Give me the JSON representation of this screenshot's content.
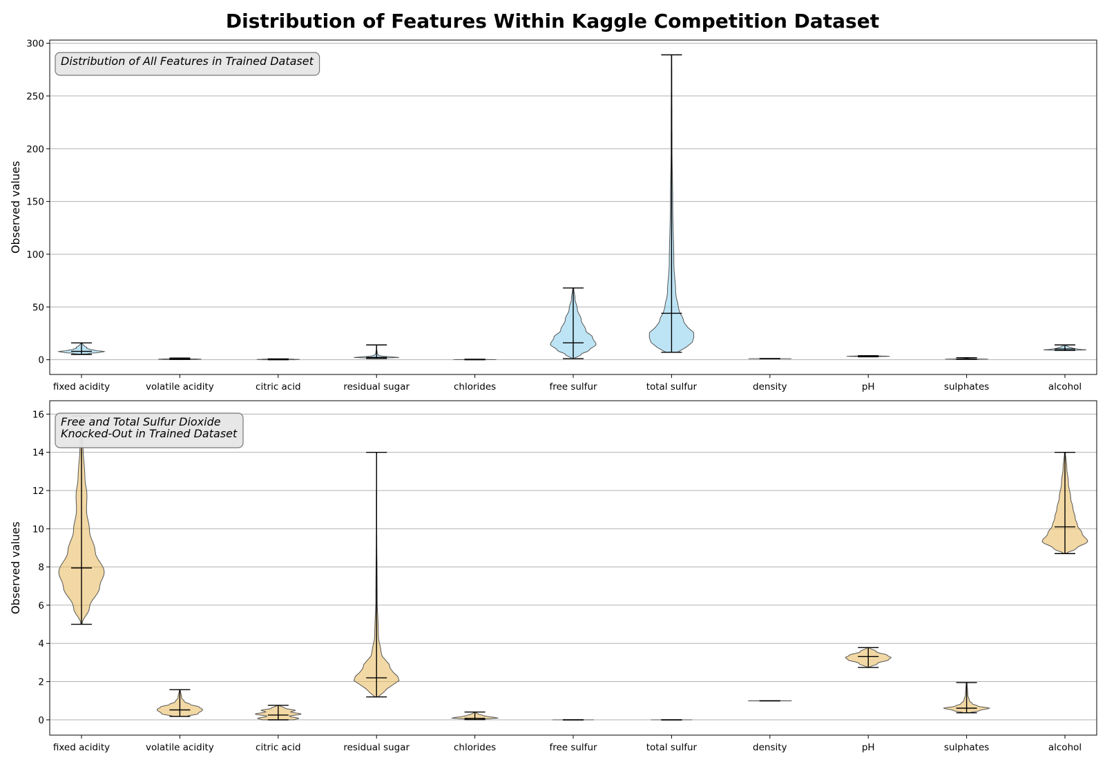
{
  "title": "Distribution of Features Within Kaggle Competition Dataset",
  "chart_data": [
    {
      "type": "violin",
      "annotation": [
        "Distribution of All Features in Trained Dataset"
      ],
      "ylabel": "Observed values",
      "xlabel": "",
      "ylim": [
        -14,
        303
      ],
      "yticks": [
        0,
        50,
        100,
        150,
        200,
        250,
        300
      ],
      "grid": "horizontal",
      "color": "#87ceeb",
      "categories": [
        "fixed acidity",
        "volatile acidity",
        "citric acid",
        "residual sugar",
        "chlorides",
        "free sulfur",
        "total sulfur",
        "density",
        "pH",
        "sulphates",
        "alcohol"
      ],
      "stats": [
        {
          "min": 5.0,
          "max": 15.9,
          "median": 7.9
        },
        {
          "min": 0.18,
          "max": 1.58,
          "median": 0.52
        },
        {
          "min": 0.0,
          "max": 0.76,
          "median": 0.25
        },
        {
          "min": 1.2,
          "max": 14.0,
          "median": 2.2
        },
        {
          "min": 0.012,
          "max": 0.41,
          "median": 0.08
        },
        {
          "min": 1,
          "max": 68,
          "median": 16
        },
        {
          "min": 7,
          "max": 289,
          "median": 44
        },
        {
          "min": 0.99,
          "max": 1.0,
          "median": 0.997
        },
        {
          "min": 2.74,
          "max": 3.78,
          "median": 3.31
        },
        {
          "min": 0.37,
          "max": 1.95,
          "median": 0.61
        },
        {
          "min": 8.7,
          "max": 14.0,
          "median": 10.1
        }
      ]
    },
    {
      "type": "violin",
      "annotation": [
        "Free and Total Sulfur Dioxide",
        "Knocked-Out in Trained Dataset"
      ],
      "ylabel": "Observed values",
      "xlabel": "",
      "ylim": [
        -0.8,
        16.7
      ],
      "yticks": [
        0,
        2,
        4,
        6,
        8,
        10,
        12,
        14,
        16
      ],
      "grid": "horizontal",
      "color": "#e8b85a",
      "categories": [
        "fixed acidity",
        "volatile acidity",
        "citric acid",
        "residual sugar",
        "chlorides",
        "free sulfur",
        "total sulfur",
        "density",
        "pH",
        "sulphates",
        "alcohol"
      ],
      "stats": [
        {
          "min": 5.0,
          "max": 15.9,
          "median": 7.95
        },
        {
          "min": 0.18,
          "max": 1.58,
          "median": 0.52
        },
        {
          "min": 0.0,
          "max": 0.76,
          "median": 0.25
        },
        {
          "min": 1.2,
          "max": 14.0,
          "median": 2.2
        },
        {
          "min": 0.012,
          "max": 0.41,
          "median": 0.08
        },
        {
          "min": 0,
          "max": 0,
          "median": 0
        },
        {
          "min": 0,
          "max": 0,
          "median": 0
        },
        {
          "min": 0.99,
          "max": 1.0,
          "median": 0.997
        },
        {
          "min": 2.74,
          "max": 3.78,
          "median": 3.31
        },
        {
          "min": 0.37,
          "max": 1.95,
          "median": 0.61
        },
        {
          "min": 8.7,
          "max": 14.0,
          "median": 10.1
        }
      ]
    }
  ]
}
